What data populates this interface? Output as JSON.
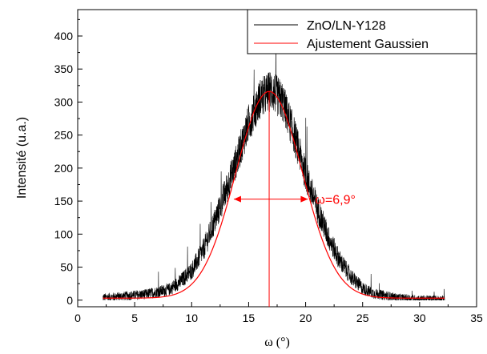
{
  "chart_data": {
    "type": "line",
    "xlabel": "ω (°)",
    "ylabel": "Intensité (u.a.)",
    "xlim": [
      0,
      35
    ],
    "ylim": [
      -10,
      440
    ],
    "x_ticks": [
      0,
      5,
      10,
      15,
      20,
      25,
      30,
      35
    ],
    "y_ticks": [
      0,
      50,
      100,
      150,
      200,
      250,
      300,
      350,
      400
    ],
    "grid": false,
    "legend_position": "top-right",
    "series": [
      {
        "name": "ZnO/LN-Y128",
        "color": "#000000",
        "style": "noisy-line",
        "x_range": [
          2.2,
          32.2
        ],
        "points": [
          [
            2.2,
            4
          ],
          [
            4,
            6
          ],
          [
            6,
            9
          ],
          [
            8,
            16
          ],
          [
            9,
            28
          ],
          [
            10,
            45
          ],
          [
            11,
            75
          ],
          [
            12,
            118
          ],
          [
            13,
            165
          ],
          [
            14,
            215
          ],
          [
            15,
            268
          ],
          [
            16,
            305
          ],
          [
            17,
            318
          ],
          [
            18,
            300
          ],
          [
            19,
            250
          ],
          [
            20,
            190
          ],
          [
            21,
            140
          ],
          [
            22,
            95
          ],
          [
            23,
            60
          ],
          [
            24,
            35
          ],
          [
            25,
            18
          ],
          [
            26,
            10
          ],
          [
            28,
            4
          ],
          [
            30,
            2
          ],
          [
            32.2,
            2
          ]
        ]
      },
      {
        "name": "Ajustement Gaussien",
        "color": "#ff0000",
        "style": "smooth-line",
        "gaussian": {
          "center": 16.8,
          "amplitude": 313,
          "fwhm": 6.9,
          "baseline": 3
        },
        "x_range": [
          2.2,
          32.2
        ]
      }
    ],
    "annotations": [
      {
        "text": "ω=6,9°",
        "color": "#ff0000",
        "x_from": 13.7,
        "x_to": 20.2,
        "y": 153
      },
      {
        "type": "vline",
        "x": 16.8,
        "color": "#ff0000"
      }
    ]
  }
}
